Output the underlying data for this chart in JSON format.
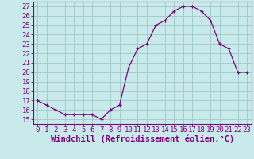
{
  "x": [
    0,
    1,
    2,
    3,
    4,
    5,
    6,
    7,
    8,
    9,
    10,
    11,
    12,
    13,
    14,
    15,
    16,
    17,
    18,
    19,
    20,
    21,
    22,
    23
  ],
  "y": [
    17,
    16.5,
    16,
    15.5,
    15.5,
    15.5,
    15.5,
    15,
    16,
    16.5,
    20.5,
    22.5,
    23,
    25,
    25.5,
    26.5,
    27,
    27,
    26.5,
    25.5,
    23,
    22.5,
    20,
    20
  ],
  "line_color": "#800080",
  "marker": "+",
  "marker_color": "#800080",
  "bg_color": "#c8eaea",
  "grid_color": "#a0c8c8",
  "xlabel": "Windchill (Refroidissement éolien,°C)",
  "xlabel_color": "#800080",
  "ylabel_ticks": [
    15,
    16,
    17,
    18,
    19,
    20,
    21,
    22,
    23,
    24,
    25,
    26,
    27
  ],
  "xtick_labels": [
    "0",
    "1",
    "2",
    "3",
    "4",
    "5",
    "6",
    "7",
    "8",
    "9",
    "10",
    "11",
    "12",
    "13",
    "14",
    "15",
    "16",
    "17",
    "18",
    "19",
    "20",
    "21",
    "22",
    "23"
  ],
  "ylim": [
    14.5,
    27.5
  ],
  "xlim": [
    -0.5,
    23.5
  ],
  "tick_color": "#800080",
  "spine_color": "#800080",
  "tick_fontsize": 6.5,
  "xlabel_size": 7.5
}
